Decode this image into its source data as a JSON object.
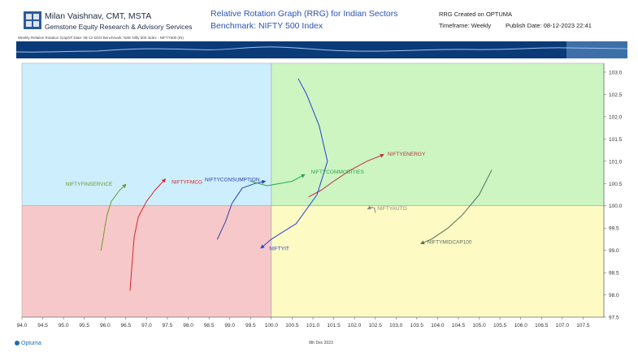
{
  "header": {
    "author": "Milan Vaishnav, CMT, MSTA",
    "firm": "Gemstone Equity Research & Advisory Services",
    "title": "Relative Rotation Graph (RRG) for Indian Sectors",
    "benchmark": "Benchmark: NIFTY 500 Index",
    "created": "RRG Created on OPTUMA",
    "timeframe": "Timeframe: Weekly",
    "publish": "Publish Date: 08-12-2023 22:41",
    "subline": "Weekly Relative Rotation Graph®   Date: 08-12-2023  Benchmark: NSE Nifty 500 Index - NIFTY500 (IN)"
  },
  "footer": {
    "logo_text": "Optuma",
    "date_label": "8th Dec 2023"
  },
  "colors": {
    "improving": "#cdeefc",
    "leading": "#ccf5c2",
    "lagging": "#f7c8ca",
    "weakening": "#fdfbc3",
    "navigator": "#0a3a78"
  },
  "chart_data": {
    "type": "scatter",
    "xlabel": "",
    "ylabel": "",
    "xlim": [
      94.0,
      108.0
    ],
    "ylim": [
      97.5,
      103.2
    ],
    "x_ticks": [
      "94.0",
      "94.5",
      "95.0",
      "95.5",
      "96.0",
      "96.5",
      "97.0",
      "97.5",
      "98.0",
      "98.5",
      "99.0",
      "99.5",
      "100.0",
      "100.5",
      "101.0",
      "101.5",
      "102.0",
      "102.5",
      "103.0",
      "103.5",
      "104.0",
      "104.5",
      "105.0",
      "105.5",
      "106.0",
      "106.5",
      "107.0",
      "107.5"
    ],
    "y_ticks": [
      "97.5",
      "98.0",
      "98.5",
      "99.0",
      "99.5",
      "100.0",
      "100.5",
      "101.0",
      "101.5",
      "102.0",
      "102.5",
      "103.0"
    ],
    "center": [
      100,
      100
    ],
    "series": [
      {
        "name": "NIFTYFINSERVICE",
        "color": "#6b9a2e",
        "points": [
          [
            95.9,
            99.0
          ],
          [
            95.95,
            99.25
          ],
          [
            96.0,
            99.55
          ],
          [
            96.05,
            99.8
          ],
          [
            96.15,
            100.1
          ],
          [
            96.35,
            100.35
          ],
          [
            96.5,
            100.48
          ]
        ]
      },
      {
        "name": "NIFTYFMCG",
        "color": "#d8252a",
        "points": [
          [
            96.6,
            98.1
          ],
          [
            96.65,
            98.7
          ],
          [
            96.7,
            99.3
          ],
          [
            96.8,
            99.75
          ],
          [
            97.0,
            100.1
          ],
          [
            97.2,
            100.35
          ],
          [
            97.45,
            100.6
          ]
        ]
      },
      {
        "name": "NIFTYCONSUMPTION",
        "color": "#2f3ea8",
        "points": [
          [
            98.7,
            99.25
          ],
          [
            98.9,
            99.65
          ],
          [
            99.05,
            100.05
          ],
          [
            99.3,
            100.4
          ],
          [
            99.6,
            100.5
          ],
          [
            99.85,
            100.55
          ]
        ]
      },
      {
        "name": "NIFTYCOMMODITIES",
        "color": "#2aa84a",
        "points": [
          [
            99.5,
            100.55
          ],
          [
            99.7,
            100.5
          ],
          [
            99.9,
            100.45
          ],
          [
            100.2,
            100.5
          ],
          [
            100.5,
            100.55
          ],
          [
            100.8,
            100.7
          ]
        ]
      },
      {
        "name": "NIFTYENERGY",
        "color": "#c42b46",
        "points": [
          [
            100.9,
            100.2
          ],
          [
            101.2,
            100.35
          ],
          [
            101.5,
            100.55
          ],
          [
            101.9,
            100.8
          ],
          [
            102.3,
            101.0
          ],
          [
            102.7,
            101.15
          ]
        ]
      },
      {
        "name": "NIFTYIT",
        "color": "#2a3fd6",
        "points": [
          [
            100.65,
            102.85
          ],
          [
            100.85,
            102.5
          ],
          [
            101.15,
            101.8
          ],
          [
            101.35,
            101.0
          ],
          [
            101.1,
            100.25
          ],
          [
            100.6,
            99.6
          ],
          [
            100.0,
            99.25
          ],
          [
            99.75,
            99.05
          ]
        ]
      },
      {
        "name": "NIFTYAUTO",
        "color": "#8a8a8a",
        "points": [
          [
            102.5,
            99.85
          ],
          [
            102.48,
            99.95
          ],
          [
            102.4,
            99.97
          ],
          [
            102.32,
            99.93
          ]
        ]
      },
      {
        "name": "NIFTYMIDCAP100",
        "color": "#5c6a5c",
        "points": [
          [
            105.3,
            100.8
          ],
          [
            105.0,
            100.25
          ],
          [
            104.6,
            99.8
          ],
          [
            104.25,
            99.5
          ],
          [
            103.85,
            99.25
          ],
          [
            103.6,
            99.15
          ]
        ]
      }
    ],
    "labels": [
      {
        "series": "NIFTYFINSERVICE",
        "x": 95.05,
        "y": 100.45
      },
      {
        "series": "NIFTYFMCG",
        "x": 97.6,
        "y": 100.5
      },
      {
        "series": "NIFTYCONSUMPTION",
        "x": 98.4,
        "y": 100.55
      },
      {
        "series": "NIFTYCOMMODITIES",
        "x": 100.95,
        "y": 100.72
      },
      {
        "series": "NIFTYENERGY",
        "x": 102.8,
        "y": 101.12
      },
      {
        "series": "NIFTYIT",
        "x": 99.95,
        "y": 99.0
      },
      {
        "series": "NIFTYAUTO",
        "x": 102.55,
        "y": 99.9
      },
      {
        "series": "NIFTYMIDCAP100",
        "x": 103.75,
        "y": 99.15
      }
    ]
  }
}
